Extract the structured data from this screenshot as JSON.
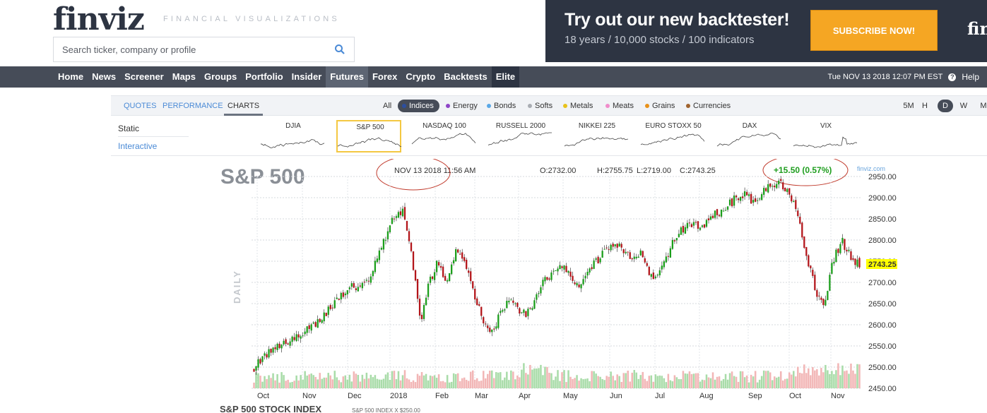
{
  "brand": {
    "logo": "finviz",
    "tagline": "FINANCIAL VISUALIZATIONS"
  },
  "search": {
    "placeholder": "Search ticker, company or profile"
  },
  "ad": {
    "title": "Try out our new backtester!",
    "subtitle": "18 years / 10,000 stocks / 100 indicators",
    "button": "SUBSCRIBE NOW!",
    "logo": "fin"
  },
  "nav": {
    "items": [
      "Home",
      "News",
      "Screener",
      "Maps",
      "Groups",
      "Portfolio",
      "Insider",
      "Futures",
      "Forex",
      "Crypto",
      "Backtests",
      "Elite"
    ],
    "active": "Futures",
    "datetime": "Tue NOV 13 2018 12:07 PM EST",
    "help": "Help"
  },
  "tabs": {
    "quotes": "QUOTES",
    "performance": "PERFORMANCE",
    "charts": "CHARTS"
  },
  "filters": [
    {
      "label": "All",
      "color": ""
    },
    {
      "label": "Indices",
      "color": "#2c4ea0"
    },
    {
      "label": "Energy",
      "color": "#8e44c7"
    },
    {
      "label": "Bonds",
      "color": "#5aa8e6"
    },
    {
      "label": "Softs",
      "color": "#a9adb3"
    },
    {
      "label": "Metals",
      "color": "#e8c21a"
    },
    {
      "label": "Meats",
      "color": "#f08ccb"
    },
    {
      "label": "Grains",
      "color": "#e8911a"
    },
    {
      "label": "Currencies",
      "color": "#a0632e"
    }
  ],
  "timeframes": [
    "5M",
    "H",
    "D",
    "W",
    "M"
  ],
  "chart_modes": {
    "static": "Static",
    "interactive": "Interactive"
  },
  "minis": [
    "DJIA",
    "S&P 500",
    "NASDAQ 100",
    "RUSSELL 2000",
    "NIKKEI 225",
    "EURO STOXX 50",
    "DAX",
    "VIX"
  ],
  "chart": {
    "symbol": "S&P 500",
    "date": "NOV 13 2018 11:56 AM",
    "open": "O:2732.00",
    "high": "H:2755.75",
    "low": "L:2719.00",
    "close": "C:2743.25",
    "change": "+15.50 (0.57%)",
    "watermark": "finviz.com",
    "period_label": "DAILY",
    "last_price": "2743.25",
    "footer_title": "S&P 500 STOCK INDEX",
    "footer_sub": "S&P 500 INDEX X $250.00"
  },
  "chart_data": {
    "type": "candlestick",
    "title": "S&P 500",
    "ylim": [
      2450,
      2950
    ],
    "yticks": [
      2450,
      2500,
      2550,
      2600,
      2650,
      2700,
      2750,
      2800,
      2850,
      2900,
      2950
    ],
    "yticks_shown": [
      "2950.00",
      "2900.00",
      "2850.00",
      "2800.00",
      "2750.00",
      "2700.00",
      "2650.00",
      "2600.00",
      "2550.00",
      "2500.00",
      "2450.00"
    ],
    "xticks": [
      "Oct",
      "Nov",
      "Dec",
      "2018",
      "Feb",
      "Mar",
      "Apr",
      "May",
      "Jun",
      "Jul",
      "Aug",
      "Sep",
      "Oct",
      "Nov"
    ],
    "close_path": [
      2500,
      2520,
      2545,
      2550,
      2565,
      2575,
      2590,
      2600,
      2620,
      2650,
      2670,
      2690,
      2690,
      2700,
      2760,
      2810,
      2860,
      2870,
      2760,
      2610,
      2700,
      2750,
      2700,
      2780,
      2740,
      2680,
      2620,
      2580,
      2620,
      2660,
      2640,
      2620,
      2660,
      2700,
      2720,
      2740,
      2720,
      2690,
      2730,
      2750,
      2770,
      2790,
      2780,
      2760,
      2770,
      2720,
      2710,
      2760,
      2810,
      2830,
      2840,
      2830,
      2860,
      2860,
      2880,
      2900,
      2910,
      2890,
      2920,
      2930,
      2930,
      2910,
      2860,
      2760,
      2680,
      2650,
      2750,
      2800,
      2760,
      2743
    ],
    "gridlines": true,
    "legend": "none"
  }
}
